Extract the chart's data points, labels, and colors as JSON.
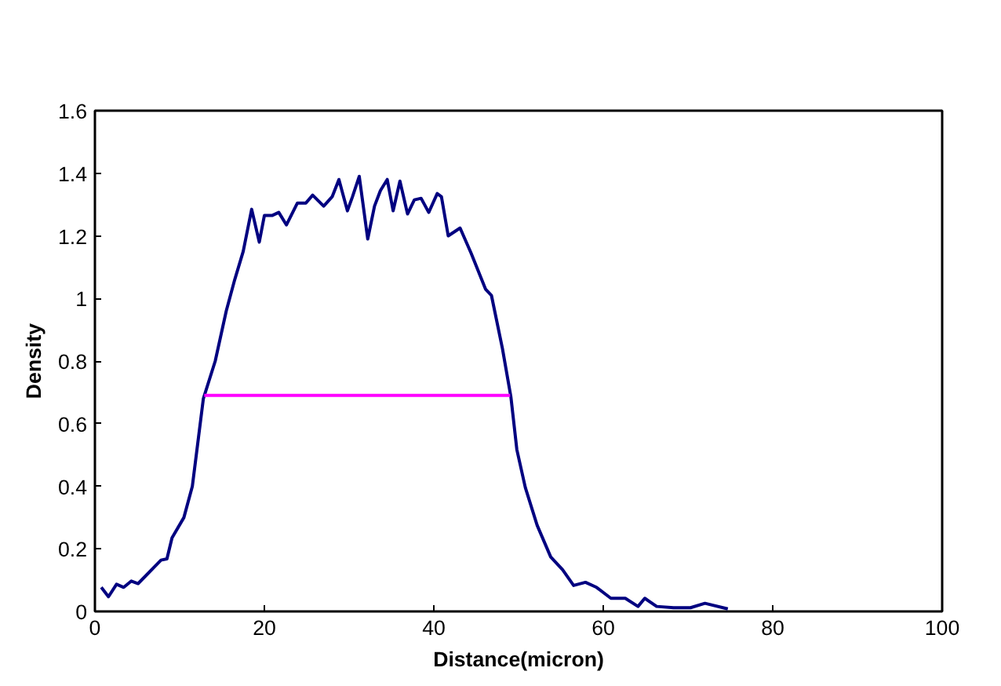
{
  "chart_data": {
    "type": "line",
    "xlabel": "Distance(micron)",
    "ylabel": "Density",
    "xlim": [
      0,
      100
    ],
    "xticks": [
      0,
      20,
      40,
      60,
      80,
      100
    ],
    "ylim": [
      0,
      1.6
    ],
    "yticks": [
      0,
      0.2,
      0.4,
      0.6,
      0.8,
      1,
      1.2,
      1.4,
      1.6
    ],
    "grid": false,
    "marker": "none",
    "line_style": "solid",
    "series": [
      {
        "color": "#000080",
        "x": [
          0.75,
          1.6,
          2.55,
          3.4,
          4.3,
          5.1,
          7.8,
          8.5,
          9.1,
          10.5,
          11.5,
          12.8,
          14.2,
          15.5,
          16.5,
          17.5,
          18.5,
          19.4,
          20.0,
          20.9,
          21.7,
          22.6,
          23.9,
          24.9,
          25.7,
          27.0,
          28.0,
          28.8,
          29.8,
          30.4,
          31.2,
          32.2,
          33.0,
          33.7,
          34.5,
          35.2,
          36.0,
          36.9,
          37.7,
          38.5,
          39.4,
          40.4,
          40.9,
          41.7,
          43.1,
          44.4,
          46.1,
          46.8,
          48.1,
          49.1,
          49.8,
          50.8,
          52.2,
          53.8,
          55.2,
          56.5,
          57.9,
          59.2,
          60.9,
          62.6,
          64.1,
          64.9,
          66.3,
          68.3,
          70.3,
          72.0,
          74.7
        ],
        "values": [
          0.077,
          0.047,
          0.087,
          0.077,
          0.097,
          0.089,
          0.164,
          0.168,
          0.235,
          0.3,
          0.4,
          0.68,
          0.8,
          0.96,
          1.06,
          1.15,
          1.285,
          1.18,
          1.265,
          1.265,
          1.275,
          1.235,
          1.305,
          1.305,
          1.33,
          1.295,
          1.325,
          1.38,
          1.28,
          1.325,
          1.39,
          1.19,
          1.295,
          1.345,
          1.38,
          1.28,
          1.375,
          1.27,
          1.315,
          1.32,
          1.275,
          1.335,
          1.325,
          1.2,
          1.225,
          1.145,
          1.03,
          1.01,
          0.84,
          0.685,
          0.517,
          0.396,
          0.275,
          0.174,
          0.133,
          0.083,
          0.093,
          0.077,
          0.042,
          0.042,
          0.016,
          0.042,
          0.016,
          0.012,
          0.012,
          0.026,
          0.008
        ]
      },
      {
        "color": "#ff00ff",
        "x": [
          12.9,
          49.0
        ],
        "values": [
          0.69,
          0.69
        ]
      }
    ]
  }
}
